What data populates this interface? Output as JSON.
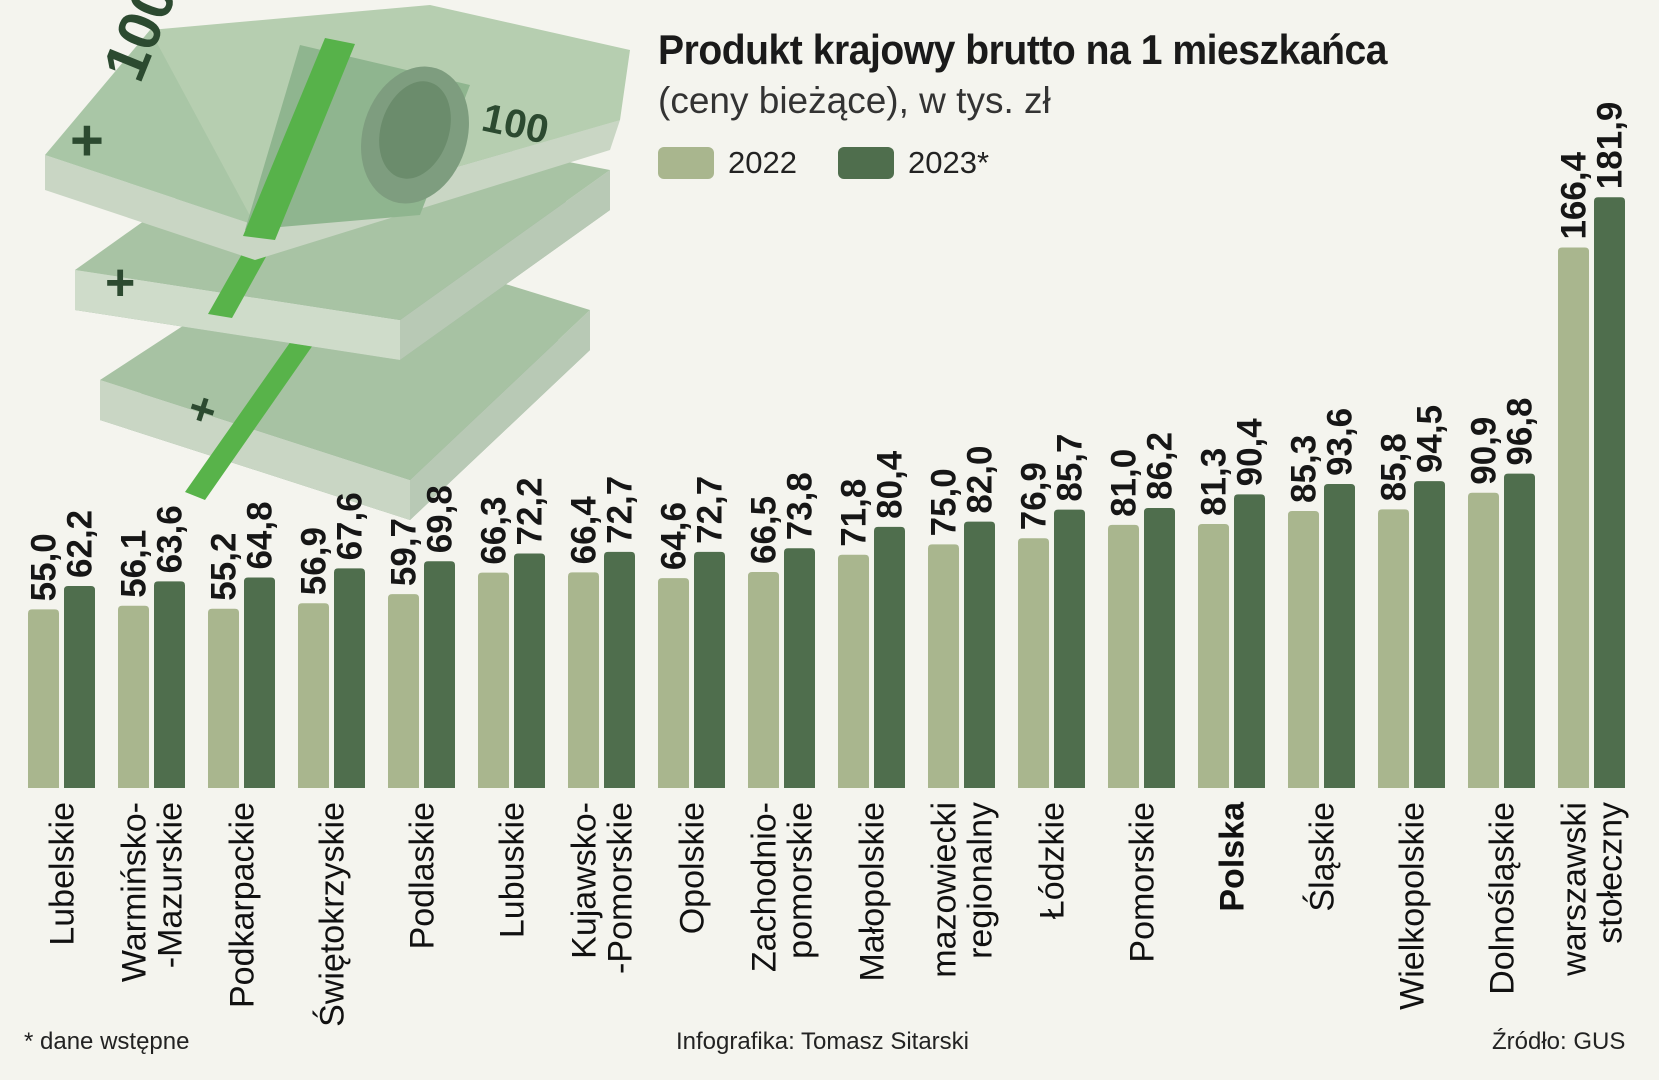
{
  "title": "Produkt krajowy brutto na 1 mieszkańca",
  "subtitle": "(ceny bieżące), w tys. zł",
  "footnote": "* dane wstępne",
  "credit": "Infografika: Tomasz Sitarski",
  "source": "Źródło: GUS",
  "colors": {
    "y2022": "#a9b68e",
    "y2023": "#4f6e4d",
    "background": "#f4f4ee"
  },
  "illustration": "stack-of-100-zl-banknotes",
  "chart_data": {
    "type": "bar",
    "title": "Produkt krajowy brutto na 1 mieszkańca",
    "subtitle": "(ceny bieżące), w tys. zł",
    "ylim": [
      0,
      190
    ],
    "grid": false,
    "legend_position": "top",
    "categories": [
      "Lubelskie",
      "Warmińsko-\n-Mazurskie",
      "Podkarpackie",
      "Świętokrzyskie",
      "Podlaskie",
      "Lubuskie",
      "Kujawsko-\n-Pomorskie",
      "Opolskie",
      "Zachodnio-\npomorskie",
      "Małopolskie",
      "mazowiecki\nregionalny",
      "Łódzkie",
      "Pomorskie",
      "Polska",
      "Śląskie",
      "Wielkopolskie",
      "Dolnośląskie",
      "warszawski\nstołeczny"
    ],
    "highlight_category": "Polska",
    "series": [
      {
        "name": "2022",
        "values": [
          55.0,
          56.1,
          55.2,
          56.9,
          59.7,
          66.3,
          66.4,
          64.6,
          66.5,
          71.8,
          75.0,
          76.9,
          81.0,
          81.3,
          85.3,
          85.8,
          90.9,
          166.4
        ],
        "labels": [
          "55,0",
          "56,1",
          "55,2",
          "56,9",
          "59,7",
          "66,3",
          "66,4",
          "64,6",
          "66,5",
          "71,8",
          "75,0",
          "76,9",
          "81,0",
          "81,3",
          "85,3",
          "85,8",
          "90,9",
          "166,4"
        ]
      },
      {
        "name": "2023*",
        "values": [
          62.2,
          63.6,
          64.8,
          67.6,
          69.8,
          72.2,
          72.7,
          72.7,
          73.8,
          80.4,
          82.0,
          85.7,
          86.2,
          90.4,
          93.6,
          94.5,
          96.8,
          181.9
        ],
        "labels": [
          "62,2",
          "63,6",
          "64,8",
          "67,6",
          "69,8",
          "72,2",
          "72,7",
          "72,7",
          "73,8",
          "80,4",
          "82,0",
          "85,7",
          "86,2",
          "90,4",
          "93,6",
          "94,5",
          "96,8",
          "181,9"
        ]
      }
    ]
  }
}
